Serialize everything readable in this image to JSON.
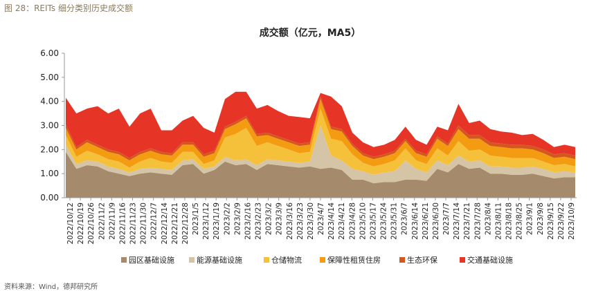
{
  "figure": {
    "caption": "图 28：REITs 细分类别历史成交额",
    "source": "资料来源：Wind，德邦研究所"
  },
  "colors": {
    "park": "#a58a6c",
    "energy": "#d6c4a6",
    "warehouse": "#f6c13a",
    "housing": "#f39c12",
    "eco": "#d4581e",
    "transport": "#e63527",
    "axis": "#999999"
  },
  "chart_data": {
    "type": "area",
    "stacked": true,
    "title": "成交额（亿元，MA5）",
    "ylim": [
      0,
      6
    ],
    "yticks": [
      "0.00",
      "1.00",
      "2.00",
      "3.00",
      "4.00",
      "5.00",
      "6.00"
    ],
    "grid": false,
    "legend_position": "bottom",
    "x_tick_labels": [
      "2022/10/12",
      "2022/10/19",
      "2022/10/26",
      "2022/11/2",
      "2022/11/9",
      "2022/11/16",
      "2022/11/23",
      "2022/11/30",
      "2022/12/7",
      "2022/12/14",
      "2022/12/21",
      "2022/12/28",
      "2023/1/5",
      "2023/1/12",
      "2023/1/19",
      "2023/2/2",
      "2023/2/9",
      "2023/2/16",
      "2023/2/23",
      "2023/3/2",
      "2023/3/9",
      "2023/3/16",
      "2023/3/23",
      "2023/3/30",
      "2023/4/7",
      "2023/4/14",
      "2023/4/21",
      "2023/4/28",
      "2023/5/10",
      "2023/5/17",
      "2023/5/24",
      "2023/5/31",
      "2023/6/7",
      "2023/6/14",
      "2023/6/21",
      "2023/6/30",
      "2023/7/7",
      "2023/7/14",
      "2023/7/21",
      "2023/7/28",
      "2023/8/4",
      "2023/8/11",
      "2023/8/18",
      "2023/8/25",
      "2023/9/1",
      "2023/9/8",
      "2023/9/15",
      "2023/9/22",
      "2023/10/9"
    ],
    "x": [
      "2022/10/12",
      "2022/10/19",
      "2022/10/26",
      "2022/11/2",
      "2022/11/9",
      "2022/11/16",
      "2022/11/23",
      "2022/11/30",
      "2022/12/7",
      "2022/12/14",
      "2022/12/21",
      "2022/12/28",
      "2023/1/5",
      "2023/1/12",
      "2023/1/19",
      "2023/2/2",
      "2023/2/9",
      "2023/2/16",
      "2023/2/23",
      "2023/3/2",
      "2023/3/9",
      "2023/3/16",
      "2023/3/23",
      "2023/3/30",
      "2023/4/7",
      "2023/4/14",
      "2023/4/21",
      "2023/4/28",
      "2023/5/10",
      "2023/5/17",
      "2023/5/24",
      "2023/5/31",
      "2023/6/7",
      "2023/6/14",
      "2023/6/21",
      "2023/6/30",
      "2023/7/7",
      "2023/7/14",
      "2023/7/21",
      "2023/7/28",
      "2023/8/4",
      "2023/8/11",
      "2023/8/18",
      "2023/8/25",
      "2023/9/1",
      "2023/9/8",
      "2023/9/15",
      "2023/9/22",
      "2023/10/9"
    ],
    "series": [
      {
        "name": "园区基础设施",
        "color_key": "park",
        "values": [
          1.9,
          1.2,
          1.35,
          1.3,
          1.1,
          1.0,
          0.9,
          1.0,
          1.05,
          1.0,
          0.95,
          1.35,
          1.4,
          1.0,
          1.15,
          1.5,
          1.35,
          1.4,
          1.15,
          1.4,
          1.35,
          1.3,
          1.25,
          1.3,
          1.2,
          1.25,
          1.15,
          0.75,
          0.75,
          0.6,
          0.65,
          0.65,
          0.75,
          0.75,
          0.7,
          1.2,
          1.05,
          1.4,
          1.2,
          1.25,
          1.0,
          1.0,
          0.95,
          0.95,
          1.0,
          0.9,
          0.8,
          0.85,
          0.85
        ]
      },
      {
        "name": "能源基础设施",
        "color_key": "energy",
        "values": [
          0.3,
          0.2,
          0.2,
          0.2,
          0.2,
          0.2,
          0.15,
          0.2,
          0.2,
          0.2,
          0.2,
          0.2,
          0.2,
          0.2,
          0.15,
          0.2,
          0.2,
          0.2,
          0.2,
          0.2,
          0.2,
          0.2,
          0.2,
          0.2,
          1.8,
          0.5,
          0.4,
          0.45,
          0.35,
          0.35,
          0.4,
          0.45,
          0.8,
          0.45,
          0.35,
          0.35,
          0.3,
          0.35,
          0.3,
          0.3,
          0.3,
          0.3,
          0.3,
          0.3,
          0.3,
          0.3,
          0.25,
          0.25,
          0.2
        ]
      },
      {
        "name": "仓储物流",
        "color_key": "warehouse",
        "values": [
          0.4,
          0.3,
          0.4,
          0.3,
          0.3,
          0.3,
          0.2,
          0.3,
          0.4,
          0.3,
          0.3,
          0.35,
          0.3,
          0.2,
          0.25,
          0.8,
          1.1,
          1.3,
          0.8,
          0.7,
          0.6,
          0.5,
          0.4,
          0.4,
          0.7,
          0.7,
          0.8,
          0.6,
          0.35,
          0.35,
          0.35,
          0.45,
          0.5,
          0.35,
          0.35,
          0.5,
          0.4,
          0.6,
          0.45,
          0.45,
          0.45,
          0.4,
          0.4,
          0.4,
          0.35,
          0.3,
          0.3,
          0.3,
          0.25
        ]
      },
      {
        "name": "保障性租赁住房",
        "color_key": "housing",
        "values": [
          0.3,
          0.3,
          0.35,
          0.3,
          0.3,
          0.3,
          0.3,
          0.3,
          0.3,
          0.3,
          0.3,
          0.3,
          0.3,
          0.3,
          0.3,
          0.35,
          0.4,
          0.4,
          0.4,
          0.3,
          0.3,
          0.3,
          0.3,
          0.3,
          0.4,
          0.4,
          0.4,
          0.35,
          0.3,
          0.3,
          0.3,
          0.3,
          0.3,
          0.3,
          0.3,
          0.4,
          0.4,
          0.5,
          0.5,
          0.45,
          0.4,
          0.4,
          0.4,
          0.4,
          0.35,
          0.35,
          0.3,
          0.3,
          0.3
        ]
      },
      {
        "name": "生态环保",
        "color_key": "eco",
        "values": [
          0.15,
          0.1,
          0.1,
          0.1,
          0.1,
          0.1,
          0.1,
          0.1,
          0.1,
          0.1,
          0.1,
          0.1,
          0.1,
          0.1,
          0.1,
          0.1,
          0.1,
          0.1,
          0.1,
          0.1,
          0.1,
          0.1,
          0.1,
          0.1,
          0.1,
          0.1,
          0.1,
          0.1,
          0.1,
          0.1,
          0.1,
          0.1,
          0.1,
          0.1,
          0.1,
          0.1,
          0.1,
          0.15,
          0.15,
          0.15,
          0.15,
          0.15,
          0.15,
          0.15,
          0.15,
          0.15,
          0.15,
          0.15,
          0.15
        ]
      },
      {
        "name": "交通基础设施",
        "color_key": "transport",
        "values": [
          1.1,
          1.4,
          1.3,
          1.6,
          1.5,
          1.8,
          1.3,
          1.6,
          1.65,
          0.9,
          0.95,
          0.9,
          1.1,
          1.1,
          0.75,
          1.15,
          1.25,
          1.0,
          1.05,
          1.15,
          1.05,
          1.0,
          1.1,
          1.0,
          0.15,
          1.25,
          0.95,
          0.45,
          0.45,
          0.4,
          0.4,
          0.45,
          0.5,
          0.45,
          0.4,
          0.4,
          0.55,
          0.9,
          0.5,
          0.6,
          0.55,
          0.5,
          0.5,
          0.4,
          0.5,
          0.4,
          0.3,
          0.35,
          0.35
        ]
      }
    ]
  }
}
